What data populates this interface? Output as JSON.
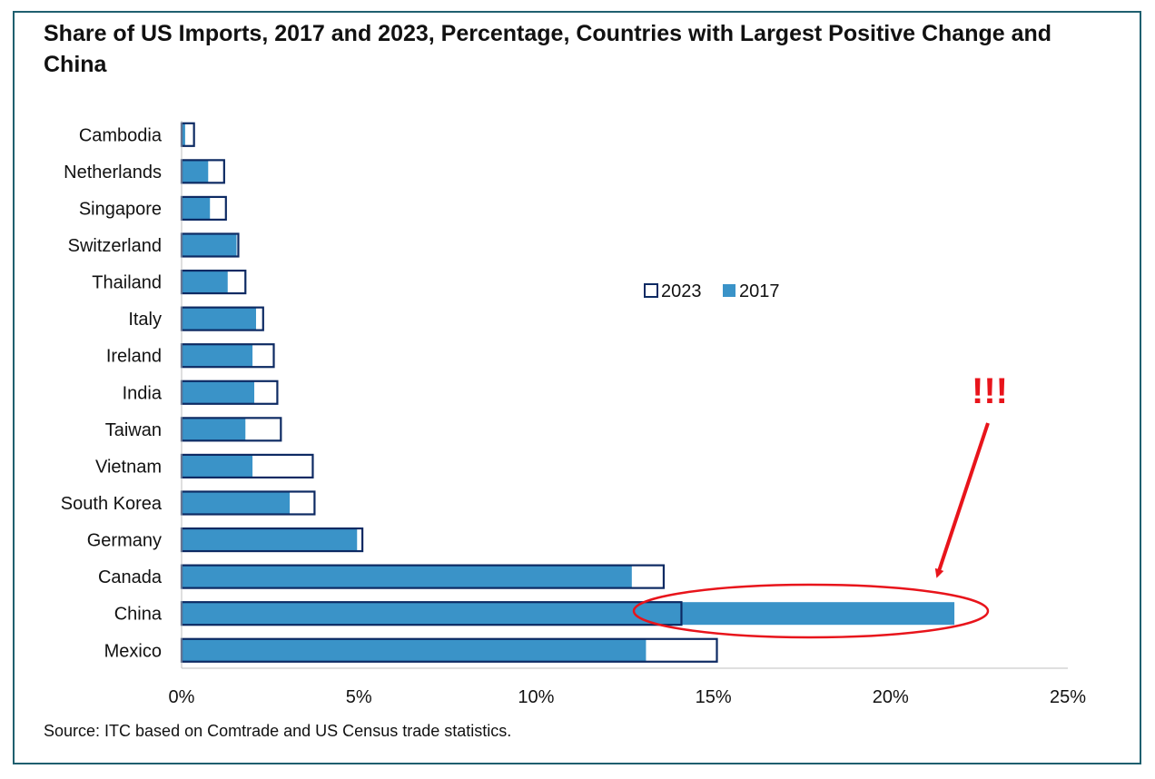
{
  "title": "Share of US Imports, 2017 and 2023, Percentage, Countries with Largest Positive Change and China",
  "source": "Source: ITC based on Comtrade and US Census trade statistics.",
  "annotation": "!!!",
  "colors": {
    "bar2017": "#3a93c8",
    "outline2023": "#0d2a63",
    "highlight": "#e8141b"
  },
  "chart_data": {
    "type": "bar",
    "orientation": "horizontal",
    "title": "Share of US Imports, 2017 and 2023, Percentage, Countries with Largest Positive Change and China",
    "categories": [
      "Cambodia",
      "Netherlands",
      "Singapore",
      "Switzerland",
      "Thailand",
      "Italy",
      "Ireland",
      "India",
      "Taiwan",
      "Vietnam",
      "South Korea",
      "Germany",
      "Canada",
      "China",
      "Mexico"
    ],
    "series": [
      {
        "name": "2023",
        "values": [
          0.35,
          1.2,
          1.25,
          1.6,
          1.8,
          2.3,
          2.6,
          2.7,
          2.8,
          3.7,
          3.75,
          5.1,
          13.6,
          14.1,
          15.1
        ]
      },
      {
        "name": "2017",
        "values": [
          0.1,
          0.75,
          0.8,
          1.55,
          1.3,
          2.1,
          2.0,
          2.05,
          1.8,
          2.0,
          3.05,
          4.95,
          12.7,
          21.8,
          13.1
        ]
      }
    ],
    "xlim": [
      0,
      25
    ],
    "xticks": [
      "0%",
      "5%",
      "10%",
      "15%",
      "20%",
      "25%"
    ],
    "legend": "center-right",
    "grid": false,
    "highlight_category": "China"
  }
}
